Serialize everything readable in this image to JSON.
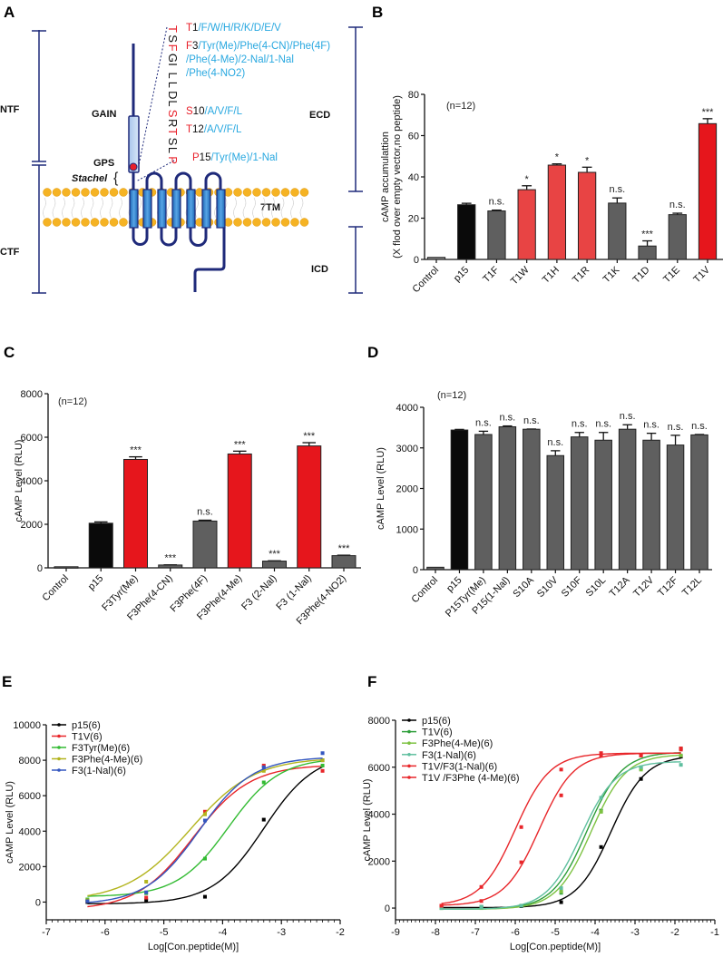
{
  "panel_labels": [
    "A",
    "B",
    "C",
    "D",
    "E",
    "F"
  ],
  "diagram": {
    "ntf": "NTF",
    "ctf": "CTF",
    "gain": "GAIN",
    "gps": "GPS",
    "stachel": "Stachel",
    "tm": "7TM",
    "ecd": "ECD",
    "icd": "ICD",
    "sequence": [
      "T",
      "S",
      "F",
      "G",
      "I",
      "L",
      "L",
      "D",
      "L",
      "S",
      "R",
      "T",
      "S",
      "L",
      "P"
    ],
    "sequence_highlight": [
      0,
      2,
      9,
      11,
      14
    ],
    "mutations": [
      {
        "site": "T",
        "pos": "1",
        "variants": "/F/W/H/R/K/D/E/V"
      },
      {
        "site": "F",
        "pos": "3",
        "variants": "/Tyr(Me)/Phe(4-CN)/Phe(4F)"
      },
      {
        "site": "",
        "pos": "",
        "variants": "/Phe(4-Me)/2-Nal/1-Nal"
      },
      {
        "site": "",
        "pos": "",
        "variants": "/Phe(4-NO2)"
      },
      {
        "site": "S",
        "pos": "10",
        "variants": "/A/V/F/L"
      },
      {
        "site": "T",
        "pos": "12",
        "variants": "/A/V/F/L"
      },
      {
        "site": "P",
        "pos": "15",
        "variants": "/Tyr(Me)/1-Nal"
      }
    ],
    "colors": {
      "site": "#e8202a",
      "variant": "#29a8e0",
      "line": "#1f2a7a"
    }
  },
  "chart_data": [
    {
      "panel": "B",
      "type": "bar",
      "title": "",
      "ylabel": [
        "cAMP accumulattion",
        "(X flod over empty vector,no peptide)"
      ],
      "xlabel": "",
      "note": "(n=12)",
      "ylim": [
        0,
        80
      ],
      "yticks": [
        0,
        20,
        40,
        60,
        80
      ],
      "categories": [
        "Control",
        "p15",
        "T1F",
        "T1W",
        "T1H",
        "T1R",
        "T1K",
        "T1D",
        "T1E",
        "T1V"
      ],
      "values": [
        1,
        26.5,
        23.5,
        33.8,
        45.7,
        42.2,
        27.3,
        6.5,
        21.7,
        65.8
      ],
      "errors": [
        0,
        0.7,
        0.4,
        1.9,
        0.6,
        2.5,
        2.5,
        2.5,
        0.7,
        2.4
      ],
      "annotations": [
        "",
        "",
        "n.s.",
        "*",
        "*",
        "*",
        "n.s.",
        "***",
        "n.s.",
        "***"
      ],
      "colors": [
        "#8a8a8a",
        "#0a0a0a",
        "#5f5f5f",
        "#e84444",
        "#e84444",
        "#e84444",
        "#5f5f5f",
        "#5f5f5f",
        "#5f5f5f",
        "#e6161c"
      ]
    },
    {
      "panel": "C",
      "type": "bar",
      "title": "",
      "ylabel": [
        "cAMP Level (RLU)"
      ],
      "xlabel": "",
      "note": "(n=12)",
      "ylim": [
        0,
        8000
      ],
      "yticks": [
        0,
        2000,
        4000,
        6000,
        8000
      ],
      "categories": [
        "Control",
        "p15",
        "F3Tyr(Me)",
        "F3Phe(4-CN)",
        "F3Phe(4F)",
        "F3Phe(4-Me)",
        "F3 (2-Nal)",
        "F3 (1-Nal)",
        "F3Phe(4-NO2)"
      ],
      "values": [
        50,
        2050,
        4980,
        130,
        2150,
        5230,
        310,
        5600,
        560
      ],
      "errors": [
        0,
        60,
        120,
        10,
        40,
        130,
        15,
        150,
        20
      ],
      "annotations": [
        "",
        "",
        "***",
        "***",
        "n.s.",
        "***",
        "***",
        "***",
        "***"
      ],
      "colors": [
        "#5f5f5f",
        "#0a0a0a",
        "#e6161c",
        "#5f5f5f",
        "#5f5f5f",
        "#e6161c",
        "#5f5f5f",
        "#e6161c",
        "#5f5f5f"
      ]
    },
    {
      "panel": "D",
      "type": "bar",
      "title": "",
      "ylabel": [
        "cAMP Level (RLU)"
      ],
      "xlabel": "",
      "note": "(n=12)",
      "ylim": [
        0,
        4000
      ],
      "yticks": [
        0,
        1000,
        2000,
        3000,
        4000
      ],
      "categories": [
        "Control",
        "p15",
        "P15Tyr(Me)",
        "P15(1-Nal)",
        "S10A",
        "S10V",
        "S10F",
        "S10L",
        "T12A",
        "T12V",
        "T12F",
        "T12L"
      ],
      "values": [
        60,
        3440,
        3330,
        3520,
        3460,
        2810,
        3270,
        3190,
        3460,
        3190,
        3070,
        3320
      ],
      "errors": [
        0,
        15,
        80,
        20,
        5,
        120,
        110,
        190,
        110,
        170,
        240,
        10
      ],
      "annotations": [
        "",
        "",
        "n.s.",
        "n.s.",
        "n.s.",
        "n.s.",
        "n.s.",
        "n.s.",
        "n.s.",
        "n.s.",
        "n.s.",
        "n.s."
      ],
      "colors": [
        "#5f5f5f",
        "#0a0a0a",
        "#5f5f5f",
        "#5f5f5f",
        "#5f5f5f",
        "#5f5f5f",
        "#5f5f5f",
        "#5f5f5f",
        "#5f5f5f",
        "#5f5f5f",
        "#5f5f5f",
        "#5f5f5f"
      ]
    },
    {
      "panel": "E",
      "type": "line",
      "title": "",
      "ylabel": "cAMP Level (RLU)",
      "xlabel": "Log[Con.peptide(M)]",
      "xlim": [
        -7,
        -2
      ],
      "xticks": [
        -7,
        -6,
        -5,
        -4,
        -3,
        -2
      ],
      "ylim": [
        -1000,
        10000
      ],
      "yticks": [
        0,
        2000,
        4000,
        6000,
        8000,
        10000
      ],
      "legend_position": "top-left",
      "series": [
        {
          "name": "p15(6)",
          "color": "#000000",
          "fit": {
            "bottom": -100,
            "top": 8400,
            "logEC50": -3.3,
            "hill": 1.0
          },
          "x": [
            -6.3,
            -5.3,
            -4.3,
            -3.3,
            -2.3
          ],
          "y": [
            0,
            100,
            300,
            4650,
            8000
          ]
        },
        {
          "name": "T1V(6)",
          "color": "#e8262a",
          "fit": {
            "bottom": -450,
            "top": 7750,
            "logEC50": -4.5,
            "hill": 0.9
          },
          "x": [
            -6.3,
            -5.3,
            -4.3,
            -3.3,
            -2.3
          ],
          "y": [
            50,
            250,
            5100,
            7700,
            7400
          ]
        },
        {
          "name": "F3Tyr(Me)(6)",
          "color": "#33bb33",
          "fit": {
            "bottom": 300,
            "top": 8150,
            "logEC50": -3.9,
            "hill": 1.0
          },
          "x": [
            -6.3,
            -5.3,
            -4.3,
            -3.3,
            -2.3
          ],
          "y": [
            150,
            500,
            2450,
            6750,
            7700
          ]
        },
        {
          "name": "F3Phe(4-Me)(6)",
          "color": "#b3b41e",
          "fit": {
            "bottom": 50,
            "top": 8150,
            "logEC50": -4.55,
            "hill": 0.8
          },
          "x": [
            -6.3,
            -5.3,
            -4.3,
            -3.3,
            -2.3
          ],
          "y": [
            100,
            1150,
            4950,
            7400,
            8000
          ]
        },
        {
          "name": "F3(1-Nal)(6)",
          "color": "#3457c0",
          "fit": {
            "bottom": -150,
            "top": 8200,
            "logEC50": -4.4,
            "hill": 0.95
          },
          "x": [
            -6.3,
            -5.3,
            -4.3,
            -3.3,
            -2.3
          ],
          "y": [
            50,
            550,
            4600,
            7600,
            8400
          ]
        }
      ]
    },
    {
      "panel": "F",
      "type": "line",
      "title": "",
      "ylabel": "cAMP Level (RLU)",
      "xlabel": "Log[Con.peptide(M)]",
      "xlim": [
        -9,
        -1
      ],
      "xticks": [
        -9,
        -8,
        -7,
        -6,
        -5,
        -4,
        -3,
        -2,
        -1
      ],
      "ylim": [
        -500,
        8000
      ],
      "yticks": [
        0,
        2000,
        4000,
        6000,
        8000
      ],
      "legend_position": "top-left",
      "series": [
        {
          "name": "p15(6)",
          "color": "#000000",
          "fit": {
            "bottom": 20,
            "top": 6500,
            "logEC50": -3.6,
            "hill": 1.0
          },
          "x": [
            -7.85,
            -6.85,
            -5.85,
            -4.85,
            -3.85,
            -2.85,
            -1.85
          ],
          "y": [
            50,
            50,
            80,
            250,
            2600,
            5500,
            6450
          ]
        },
        {
          "name": "T1V(6)",
          "color": "#2e9e3a",
          "fit": {
            "bottom": -50,
            "top": 6650,
            "logEC50": -4.2,
            "hill": 1.0
          },
          "x": [
            -7.85,
            -6.85,
            -5.85,
            -4.85,
            -3.85,
            -2.85,
            -1.85
          ],
          "y": [
            0,
            50,
            100,
            650,
            4150,
            5950,
            6800
          ]
        },
        {
          "name": "F3Phe(4-Me)(6)",
          "color": "#7dc242",
          "fit": {
            "bottom": -50,
            "top": 6550,
            "logEC50": -4.1,
            "hill": 1.0
          },
          "x": [
            -7.85,
            -6.85,
            -5.85,
            -4.85,
            -3.85,
            -2.85,
            -1.85
          ],
          "y": [
            0,
            0,
            100,
            700,
            4100,
            5900,
            6500
          ]
        },
        {
          "name": "F3(1-Nal)(6)",
          "color": "#5fbf9f",
          "fit": {
            "bottom": -50,
            "top": 6250,
            "logEC50": -4.35,
            "hill": 1.0
          },
          "x": [
            -7.85,
            -6.85,
            -5.85,
            -4.85,
            -3.85,
            -2.85,
            -1.85
          ],
          "y": [
            0,
            50,
            100,
            850,
            4700,
            6000,
            6100
          ]
        },
        {
          "name": "T1V/F3(1-Nal)(6)",
          "color": "#e8262a",
          "fit": {
            "bottom": 100,
            "top": 6600,
            "logEC50": -5.4,
            "hill": 1.0
          },
          "x": [
            -7.85,
            -6.85,
            -5.85,
            -4.85,
            -3.85,
            -2.85,
            -1.85
          ],
          "y": [
            100,
            300,
            1950,
            4800,
            6500,
            6500,
            6750
          ]
        },
        {
          "name": "T1V /F3Phe (4-Me)(6)",
          "color": "#e8262a",
          "fit": {
            "bottom": 100,
            "top": 6600,
            "logEC50": -6.0,
            "hill": 1.0
          },
          "x": [
            -7.85,
            -6.85,
            -5.85,
            -4.85,
            -3.85,
            -2.85,
            -1.85
          ],
          "y": [
            100,
            900,
            3450,
            5900,
            6600,
            6500,
            6800
          ]
        }
      ]
    }
  ]
}
